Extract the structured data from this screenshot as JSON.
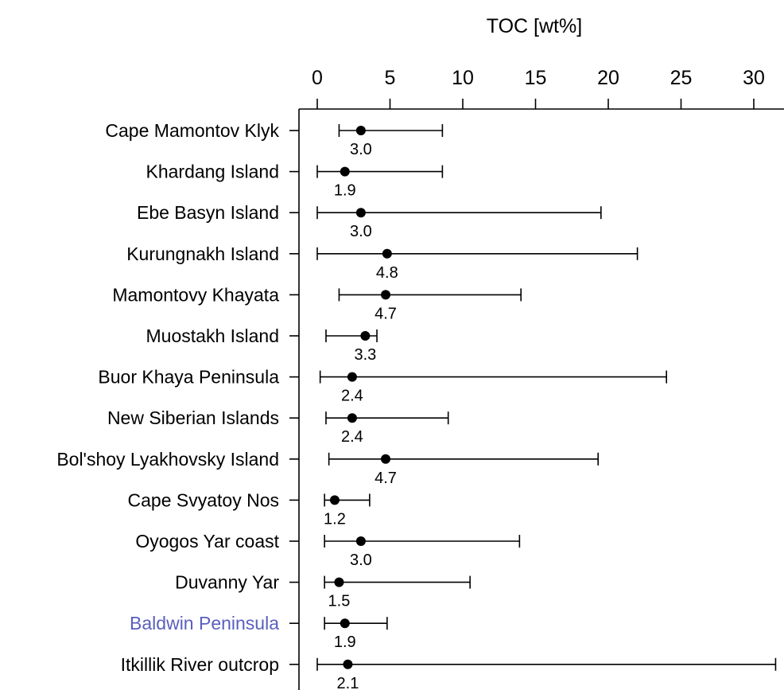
{
  "chart_data": {
    "type": "scatter",
    "title": "",
    "xlabel": "TOC [wt%]",
    "ylabel": "",
    "xlim": [
      0,
      32
    ],
    "x_ticks": [
      0,
      5,
      10,
      15,
      20,
      25,
      30
    ],
    "axis_position": "top",
    "grid": false,
    "categories": [
      "Cape Mamontov Klyk",
      "Khardang Island",
      "Ebe Basyn Island",
      "Kurungnakh Island",
      "Mamontovy Khayata",
      "Muostakh Island",
      "Buor Khaya Peninsula",
      "New Siberian Islands",
      "Bol'shoy Lyakhovsky Island",
      "Cape Svyatoy Nos",
      "Oyogos Yar coast",
      "Duvanny Yar",
      "Baldwin Peninsula",
      "Itkillik River outcrop"
    ],
    "value_labels": [
      "3.0",
      "1.9",
      "3.0",
      "4.8",
      "4.7",
      "3.3",
      "2.4",
      "2.4",
      "4.7",
      "1.2",
      "3.0",
      "1.5",
      "1.9",
      "2.1"
    ],
    "values": [
      3.0,
      1.9,
      3.0,
      4.8,
      4.7,
      3.3,
      2.4,
      2.4,
      4.7,
      1.2,
      3.0,
      1.5,
      1.9,
      2.1
    ],
    "min": [
      1.5,
      0.0,
      0.0,
      0.0,
      1.5,
      0.6,
      0.2,
      0.6,
      0.8,
      0.5,
      0.5,
      0.5,
      0.5,
      0.0
    ],
    "max": [
      8.6,
      8.6,
      19.5,
      22.0,
      14.0,
      4.1,
      24.0,
      9.0,
      19.3,
      3.6,
      13.9,
      10.5,
      4.8,
      31.5
    ],
    "highlight_color": "#5a5fbf",
    "highlight_categories": [
      "Baldwin Peninsula"
    ],
    "marker_color": "#000000"
  }
}
